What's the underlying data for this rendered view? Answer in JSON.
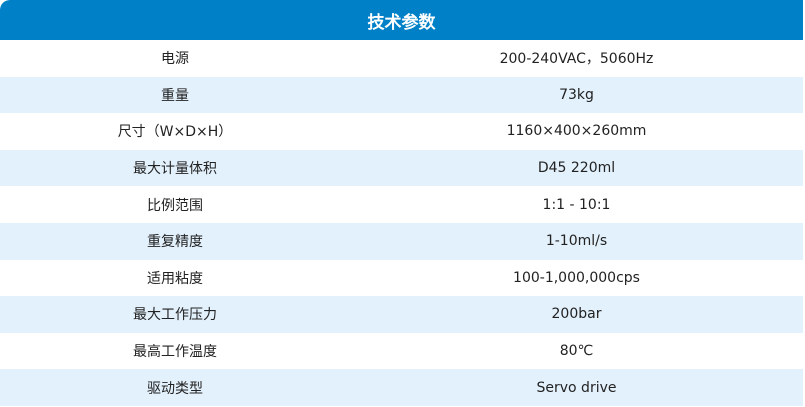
{
  "title": "技术参数",
  "rows": [
    {
      "label": "电源",
      "value": "200-240VAC，5060Hz"
    },
    {
      "label": "重量",
      "value": "73kg"
    },
    {
      "label": "尺寸（W×D×H）",
      "value": "1160×400×260mm"
    },
    {
      "label": "最大计量体积",
      "value": "D45 220ml"
    },
    {
      "label": "比例范围",
      "value": "1:1 - 10:1"
    },
    {
      "label": "重复精度",
      "value": "1-10ml/s"
    },
    {
      "label": "适用粘度",
      "value": "100-1,000,000cps"
    },
    {
      "label": "最大工作压力",
      "value": "200bar"
    },
    {
      "label": "最高工作温度",
      "value": "80℃"
    },
    {
      "label": "驱动类型",
      "value": "Servo drive"
    }
  ],
  "colors": {
    "header": "#0080c6",
    "stripe": "#e3f1fc"
  }
}
